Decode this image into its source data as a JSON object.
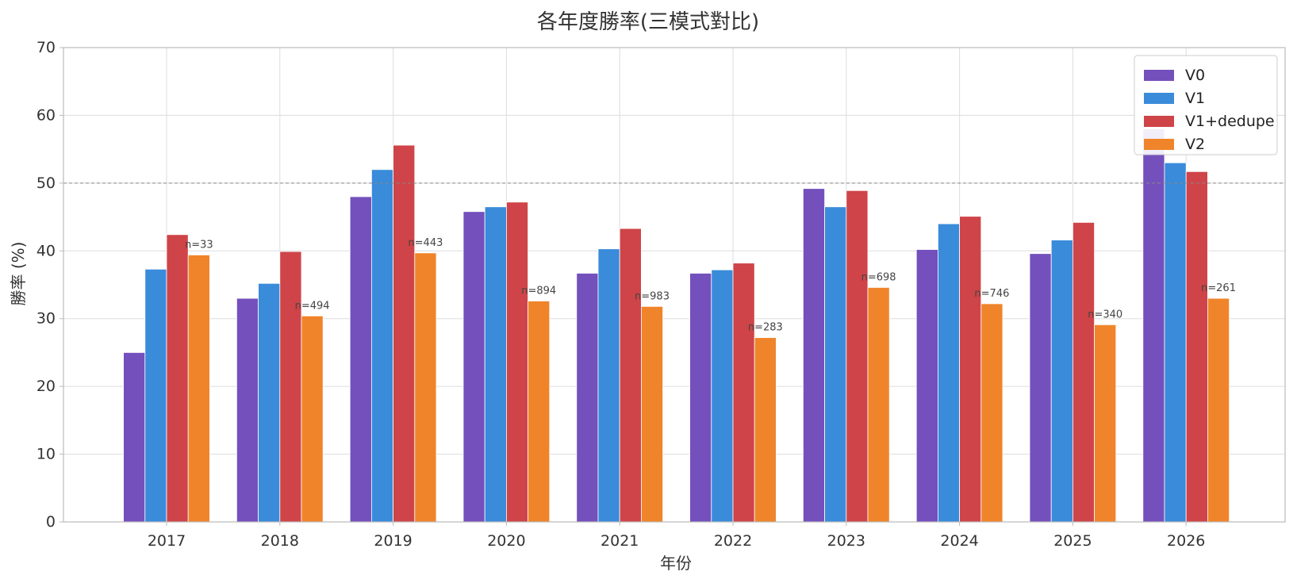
{
  "chart_data": {
    "type": "bar",
    "title": "各年度勝率(三模式對比)",
    "xlabel": "年份",
    "ylabel": "勝率 (%)",
    "ylim": [
      0,
      70
    ],
    "yticks": [
      0,
      10,
      20,
      30,
      40,
      50,
      60,
      70
    ],
    "reference_line": 50,
    "grid": true,
    "legend_position": "top-right",
    "categories": [
      "2017",
      "2018",
      "2019",
      "2020",
      "2021",
      "2022",
      "2023",
      "2024",
      "2025",
      "2026"
    ],
    "series": [
      {
        "name": "V0",
        "color": "#7450bc",
        "values": [
          25.0,
          33.0,
          48.0,
          45.8,
          36.7,
          36.7,
          49.2,
          40.2,
          39.6,
          58.0
        ]
      },
      {
        "name": "V1",
        "color": "#3a8bda",
        "values": [
          37.3,
          35.2,
          52.0,
          46.5,
          40.3,
          37.2,
          46.5,
          44.0,
          41.6,
          53.0
        ]
      },
      {
        "name": "V1+dedupe",
        "color": "#cf4448",
        "values": [
          42.4,
          39.9,
          55.6,
          47.2,
          43.3,
          38.2,
          48.9,
          45.1,
          44.2,
          51.7
        ]
      },
      {
        "name": "V2",
        "color": "#f0842a",
        "values": [
          39.4,
          30.4,
          39.7,
          32.6,
          31.8,
          27.2,
          34.6,
          32.2,
          29.1,
          33.0
        ]
      }
    ],
    "sample_sizes": [
      "n=33",
      "n=494",
      "n=443",
      "n=894",
      "n=983",
      "n=283",
      "n=698",
      "n=746",
      "n=340",
      "n=261"
    ]
  }
}
